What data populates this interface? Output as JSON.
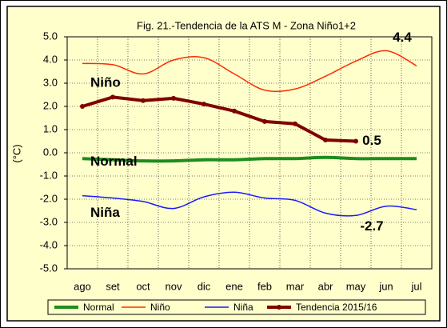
{
  "chart_data": {
    "type": "line",
    "title": "Fig. 21.-Tendencia  de la ATS M - Zona Niño1+2",
    "ylabel": "(°C)",
    "categories": [
      "ago",
      "set",
      "oct",
      "nov",
      "dic",
      "ene",
      "feb",
      "mar",
      "abr",
      "may",
      "jun",
      "jul"
    ],
    "series": [
      {
        "name": "Normal",
        "color": "#1e8c1e",
        "width": 4,
        "smooth": true,
        "markers": false,
        "values": [
          -0.25,
          -0.3,
          -0.35,
          -0.35,
          -0.3,
          -0.3,
          -0.25,
          -0.25,
          -0.2,
          -0.25,
          -0.25,
          -0.25
        ]
      },
      {
        "name": "Niño",
        "color": "#ff2a00",
        "width": 1.5,
        "smooth": true,
        "markers": false,
        "values": [
          3.85,
          3.8,
          3.4,
          4.0,
          4.1,
          3.4,
          2.7,
          2.75,
          3.3,
          3.95,
          4.4,
          3.75
        ],
        "value_labels": [
          null,
          null,
          null,
          null,
          null,
          null,
          null,
          null,
          null,
          null,
          "4.4",
          null
        ]
      },
      {
        "name": "Niña",
        "color": "#1a1aff",
        "width": 1.5,
        "smooth": true,
        "markers": false,
        "values": [
          -1.85,
          -1.95,
          -2.1,
          -2.4,
          -1.9,
          -1.7,
          -1.95,
          -2.05,
          -2.6,
          -2.7,
          -2.3,
          -2.45
        ],
        "value_labels": [
          null,
          null,
          null,
          null,
          null,
          null,
          null,
          null,
          null,
          "-2.7",
          null,
          null
        ]
      },
      {
        "name": "Tendencia 2015/16",
        "color": "#800000",
        "width": 4,
        "smooth": false,
        "markers": true,
        "values": [
          2.0,
          2.4,
          2.25,
          2.35,
          2.1,
          1.8,
          1.35,
          1.25,
          0.55,
          0.5,
          null,
          null
        ],
        "value_labels": [
          null,
          null,
          null,
          null,
          null,
          null,
          null,
          null,
          null,
          "0.5",
          null,
          null
        ]
      }
    ],
    "ylim": [
      -5,
      5
    ],
    "yticks": [
      {
        "value": 5,
        "label": "5.0"
      },
      {
        "value": 4,
        "label": "4.0"
      },
      {
        "value": 3,
        "label": "3.0"
      },
      {
        "value": 2,
        "label": "2.0"
      },
      {
        "value": 1,
        "label": "1.0"
      },
      {
        "value": 0,
        "label": "0.0"
      },
      {
        "value": -1,
        "label": "-1.0"
      },
      {
        "value": -2,
        "label": "-2.0"
      },
      {
        "value": -3,
        "label": "-3.0"
      },
      {
        "value": -4,
        "label": "-4.0"
      },
      {
        "value": -5,
        "label": "-5.0"
      }
    ],
    "grid": true,
    "legend": "bottom"
  }
}
